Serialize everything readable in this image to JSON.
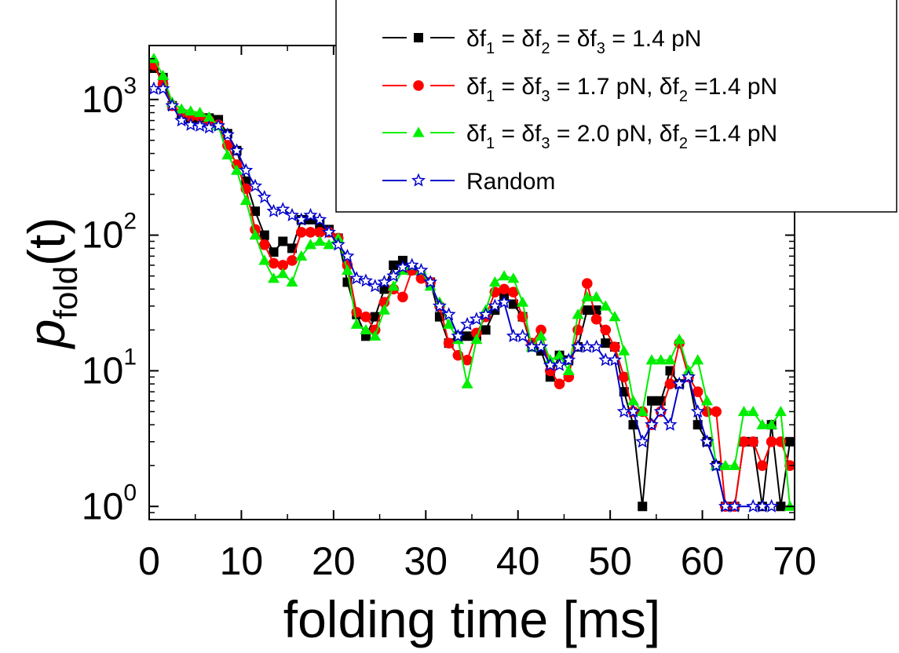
{
  "chart_data": {
    "type": "line",
    "title": "",
    "xlabel": "folding time [ms]",
    "ylabel_main": "p",
    "ylabel_sub": "fold",
    "ylabel_suffix": "(t)",
    "xlim": [
      0,
      70
    ],
    "ylim": [
      0.8,
      2500
    ],
    "yscale": "log",
    "grid": false,
    "x_ticks": [
      "0",
      "10",
      "20",
      "30",
      "40",
      "50",
      "60",
      "70"
    ],
    "y_ticks": [
      {
        "base": "10",
        "exp": "0"
      },
      {
        "base": "10",
        "exp": "1"
      },
      {
        "base": "10",
        "exp": "2"
      },
      {
        "base": "10",
        "exp": "3"
      }
    ],
    "legend_position": "top-right",
    "series": [
      {
        "name": "δf1 = δf2 = δf3 = 1.4 pN",
        "legend": [
          {
            "t": "δf"
          },
          {
            "t": "1",
            "sub": true
          },
          {
            "t": " = δf"
          },
          {
            "t": "2",
            "sub": true
          },
          {
            "t": " = δf"
          },
          {
            "t": "3",
            "sub": true
          },
          {
            "t": " = 1.4 pN"
          }
        ],
        "color": "#000000",
        "marker": "square",
        "points": [
          [
            0.5,
            1700
          ],
          [
            1.5,
            1450
          ],
          [
            2.5,
            900
          ],
          [
            3.5,
            760
          ],
          [
            4.5,
            730
          ],
          [
            5.5,
            730
          ],
          [
            6.5,
            730
          ],
          [
            7.5,
            710
          ],
          [
            8.5,
            560
          ],
          [
            9.5,
            420
          ],
          [
            10.5,
            250
          ],
          [
            11.5,
            150
          ],
          [
            12.5,
            100
          ],
          [
            13.5,
            75
          ],
          [
            14.5,
            90
          ],
          [
            15.5,
            80
          ],
          [
            16.5,
            130
          ],
          [
            17.5,
            130
          ],
          [
            18.5,
            120
          ],
          [
            19.5,
            110
          ],
          [
            20.5,
            95
          ],
          [
            21.5,
            45
          ],
          [
            22.5,
            26
          ],
          [
            23.5,
            18
          ],
          [
            24.5,
            25
          ],
          [
            25.5,
            40
          ],
          [
            26.5,
            60
          ],
          [
            27.5,
            65
          ],
          [
            28.5,
            55
          ],
          [
            29.5,
            50
          ],
          [
            30.5,
            45
          ],
          [
            31.5,
            25
          ],
          [
            32.5,
            16
          ],
          [
            33.5,
            18
          ],
          [
            34.5,
            18
          ],
          [
            35.5,
            18
          ],
          [
            36.5,
            20
          ],
          [
            37.5,
            28
          ],
          [
            38.5,
            35
          ],
          [
            39.5,
            31
          ],
          [
            40.5,
            25
          ],
          [
            41.5,
            15
          ],
          [
            42.5,
            14
          ],
          [
            43.5,
            9
          ],
          [
            44.5,
            13
          ],
          [
            45.5,
            12
          ],
          [
            46.5,
            15
          ],
          [
            47.5,
            28
          ],
          [
            48.5,
            28
          ],
          [
            49.5,
            16
          ],
          [
            50.5,
            15
          ],
          [
            51.5,
            7
          ],
          [
            52.5,
            4
          ],
          [
            53.5,
            1
          ],
          [
            54.5,
            6
          ],
          [
            55.5,
            6
          ],
          [
            56.5,
            10
          ],
          [
            57.5,
            8
          ],
          [
            58.5,
            9
          ],
          [
            59.5,
            4
          ],
          [
            60.5,
            3
          ],
          [
            61.5,
            2
          ],
          [
            62.5,
            1
          ],
          [
            63.5,
            1
          ],
          [
            64.5,
            3
          ],
          [
            65.5,
            3
          ],
          [
            66.5,
            1
          ],
          [
            67.5,
            4
          ],
          [
            68.5,
            1
          ],
          [
            69.5,
            3
          ]
        ]
      },
      {
        "name": "δf1 = δf3 = 1.7 pN,  δf2 =1.4 pN",
        "legend": [
          {
            "t": "δf"
          },
          {
            "t": "1",
            "sub": true
          },
          {
            "t": " = δf"
          },
          {
            "t": "3",
            "sub": true
          },
          {
            "t": " = 1.7 pN,  δf"
          },
          {
            "t": "2",
            "sub": true
          },
          {
            "t": " =1.4 pN"
          }
        ],
        "color": "#ff0000",
        "marker": "circle",
        "points": [
          [
            0.5,
            1800
          ],
          [
            1.5,
            1300
          ],
          [
            2.5,
            900
          ],
          [
            3.5,
            800
          ],
          [
            4.5,
            750
          ],
          [
            5.5,
            750
          ],
          [
            6.5,
            700
          ],
          [
            7.5,
            650
          ],
          [
            8.5,
            460
          ],
          [
            9.5,
            330
          ],
          [
            10.5,
            220
          ],
          [
            11.5,
            110
          ],
          [
            12.5,
            85
          ],
          [
            13.5,
            62
          ],
          [
            14.5,
            60
          ],
          [
            15.5,
            65
          ],
          [
            16.5,
            105
          ],
          [
            17.5,
            105
          ],
          [
            18.5,
            105
          ],
          [
            19.5,
            105
          ],
          [
            20.5,
            95
          ],
          [
            21.5,
            60
          ],
          [
            22.5,
            27
          ],
          [
            23.5,
            25
          ],
          [
            24.5,
            20
          ],
          [
            25.5,
            32
          ],
          [
            26.5,
            40
          ],
          [
            27.5,
            35
          ],
          [
            28.5,
            55
          ],
          [
            29.5,
            48
          ],
          [
            30.5,
            45
          ],
          [
            31.5,
            30
          ],
          [
            32.5,
            16
          ],
          [
            33.5,
            13
          ],
          [
            34.5,
            12
          ],
          [
            35.5,
            19
          ],
          [
            36.5,
            25
          ],
          [
            37.5,
            38
          ],
          [
            38.5,
            40
          ],
          [
            39.5,
            38
          ],
          [
            40.5,
            25
          ],
          [
            41.5,
            16
          ],
          [
            42.5,
            20
          ],
          [
            43.5,
            10
          ],
          [
            44.5,
            8
          ],
          [
            45.5,
            9
          ],
          [
            46.5,
            20
          ],
          [
            47.5,
            44
          ],
          [
            48.5,
            24
          ],
          [
            49.5,
            20
          ],
          [
            50.5,
            15
          ],
          [
            51.5,
            9
          ],
          [
            52.5,
            5
          ],
          [
            53.5,
            5
          ],
          [
            54.5,
            4
          ],
          [
            55.5,
            5
          ],
          [
            56.5,
            8
          ],
          [
            57.5,
            16
          ],
          [
            58.5,
            9
          ],
          [
            59.5,
            7
          ],
          [
            60.5,
            5
          ],
          [
            61.5,
            5
          ],
          [
            62.5,
            1
          ],
          [
            63.5,
            1
          ],
          [
            64.5,
            3
          ],
          [
            65.5,
            3
          ],
          [
            66.5,
            2
          ],
          [
            67.5,
            3
          ],
          [
            68.5,
            3
          ],
          [
            69.5,
            2
          ]
        ]
      },
      {
        "name": "δf1 = δf3 = 2.0 pN,  δf2 =1.4 pN",
        "legend": [
          {
            "t": "δf"
          },
          {
            "t": "1",
            "sub": true
          },
          {
            "t": " = δf"
          },
          {
            "t": "3",
            "sub": true
          },
          {
            "t": " = 2.0 pN,  δf"
          },
          {
            "t": "2",
            "sub": true
          },
          {
            "t": " =1.4 pN"
          }
        ],
        "color": "#00ee00",
        "marker": "triangle",
        "points": [
          [
            0.5,
            2000
          ],
          [
            1.5,
            1500
          ],
          [
            2.5,
            950
          ],
          [
            3.5,
            850
          ],
          [
            4.5,
            820
          ],
          [
            5.5,
            800
          ],
          [
            6.5,
            740
          ],
          [
            7.5,
            640
          ],
          [
            8.5,
            390
          ],
          [
            9.5,
            300
          ],
          [
            10.5,
            180
          ],
          [
            11.5,
            100
          ],
          [
            12.5,
            65
          ],
          [
            13.5,
            48
          ],
          [
            14.5,
            52
          ],
          [
            15.5,
            45
          ],
          [
            16.5,
            70
          ],
          [
            17.5,
            85
          ],
          [
            18.5,
            90
          ],
          [
            19.5,
            85
          ],
          [
            20.5,
            95
          ],
          [
            21.5,
            55
          ],
          [
            22.5,
            22
          ],
          [
            23.5,
            20
          ],
          [
            24.5,
            18
          ],
          [
            25.5,
            28
          ],
          [
            26.5,
            42
          ],
          [
            27.5,
            55
          ],
          [
            28.5,
            60
          ],
          [
            29.5,
            55
          ],
          [
            30.5,
            42
          ],
          [
            31.5,
            32
          ],
          [
            32.5,
            22
          ],
          [
            33.5,
            17
          ],
          [
            34.5,
            8
          ],
          [
            35.5,
            17
          ],
          [
            36.5,
            28
          ],
          [
            37.5,
            45
          ],
          [
            38.5,
            50
          ],
          [
            39.5,
            48
          ],
          [
            40.5,
            32
          ],
          [
            41.5,
            15
          ],
          [
            42.5,
            18
          ],
          [
            43.5,
            12
          ],
          [
            44.5,
            13
          ],
          [
            45.5,
            10
          ],
          [
            46.5,
            26
          ],
          [
            47.5,
            35
          ],
          [
            48.5,
            35
          ],
          [
            49.5,
            30
          ],
          [
            50.5,
            25
          ],
          [
            51.5,
            14
          ],
          [
            52.5,
            6
          ],
          [
            53.5,
            5
          ],
          [
            54.5,
            12
          ],
          [
            55.5,
            12
          ],
          [
            56.5,
            12
          ],
          [
            57.5,
            17
          ],
          [
            58.5,
            10
          ],
          [
            59.5,
            12
          ],
          [
            60.5,
            6
          ],
          [
            61.5,
            2
          ],
          [
            62.5,
            2
          ],
          [
            63.5,
            2
          ],
          [
            64.5,
            5
          ],
          [
            65.5,
            5
          ],
          [
            66.5,
            4
          ],
          [
            67.5,
            4
          ],
          [
            68.5,
            5
          ],
          [
            69.5,
            1
          ]
        ]
      },
      {
        "name": "Random",
        "legend": [
          {
            "t": "Random"
          }
        ],
        "color": "#0000cc",
        "marker": "star",
        "points": [
          [
            0.5,
            1200
          ],
          [
            1.5,
            1200
          ],
          [
            2.5,
            900
          ],
          [
            3.5,
            700
          ],
          [
            4.5,
            650
          ],
          [
            5.5,
            640
          ],
          [
            6.5,
            620
          ],
          [
            7.5,
            640
          ],
          [
            8.5,
            550
          ],
          [
            9.5,
            420
          ],
          [
            10.5,
            300
          ],
          [
            11.5,
            230
          ],
          [
            12.5,
            190
          ],
          [
            13.5,
            150
          ],
          [
            14.5,
            155
          ],
          [
            15.5,
            140
          ],
          [
            16.5,
            130
          ],
          [
            17.5,
            140
          ],
          [
            18.5,
            130
          ],
          [
            19.5,
            105
          ],
          [
            20.5,
            85
          ],
          [
            21.5,
            70
          ],
          [
            22.5,
            48
          ],
          [
            23.5,
            46
          ],
          [
            24.5,
            42
          ],
          [
            25.5,
            45
          ],
          [
            26.5,
            50
          ],
          [
            27.5,
            58
          ],
          [
            28.5,
            60
          ],
          [
            29.5,
            55
          ],
          [
            30.5,
            45
          ],
          [
            31.5,
            30
          ],
          [
            32.5,
            26
          ],
          [
            33.5,
            18
          ],
          [
            34.5,
            22
          ],
          [
            35.5,
            24
          ],
          [
            36.5,
            26
          ],
          [
            37.5,
            30
          ],
          [
            38.5,
            32
          ],
          [
            39.5,
            18
          ],
          [
            40.5,
            18
          ],
          [
            41.5,
            15
          ],
          [
            42.5,
            15
          ],
          [
            43.5,
            11
          ],
          [
            44.5,
            11
          ],
          [
            45.5,
            12
          ],
          [
            46.5,
            15
          ],
          [
            47.5,
            15
          ],
          [
            48.5,
            15
          ],
          [
            49.5,
            12
          ],
          [
            50.5,
            12
          ],
          [
            51.5,
            5
          ],
          [
            52.5,
            5
          ],
          [
            53.5,
            3
          ],
          [
            54.5,
            4
          ],
          [
            55.5,
            5
          ],
          [
            56.5,
            4
          ],
          [
            57.5,
            8
          ],
          [
            58.5,
            9
          ],
          [
            59.5,
            5
          ],
          [
            60.5,
            3
          ],
          [
            61.5,
            2
          ],
          [
            62.5,
            1
          ],
          [
            63.5,
            1
          ],
          [
            65.5,
            1
          ],
          [
            66.5,
            1
          ],
          [
            67.5,
            1
          ]
        ]
      }
    ]
  }
}
